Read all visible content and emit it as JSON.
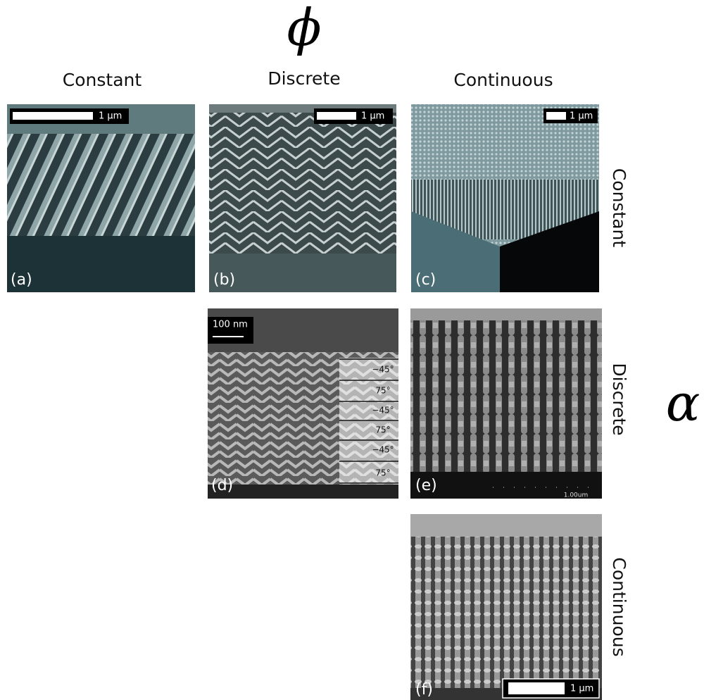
{
  "header": {
    "column_axis": "ϕ",
    "row_axis": "α",
    "columns": [
      "Constant",
      "Discrete",
      "Continuous"
    ],
    "rows": [
      "Constant",
      "Discrete",
      "Continuous"
    ]
  },
  "panels": [
    {
      "label": "(a)",
      "scale_bar": "1 μm"
    },
    {
      "label": "(b)",
      "scale_bar": "1 μm"
    },
    {
      "label": "(c)",
      "scale_bar": "1 μm"
    },
    {
      "label": "(d)",
      "scale_bar": "100 nm",
      "layer_angles": [
        "−45°",
        "75°",
        "−45°",
        "75°",
        "−45°",
        "75°"
      ]
    },
    {
      "label": "(e)",
      "scale_bar": "1.00um"
    },
    {
      "label": "(f)",
      "scale_bar": "1 μm"
    }
  ]
}
